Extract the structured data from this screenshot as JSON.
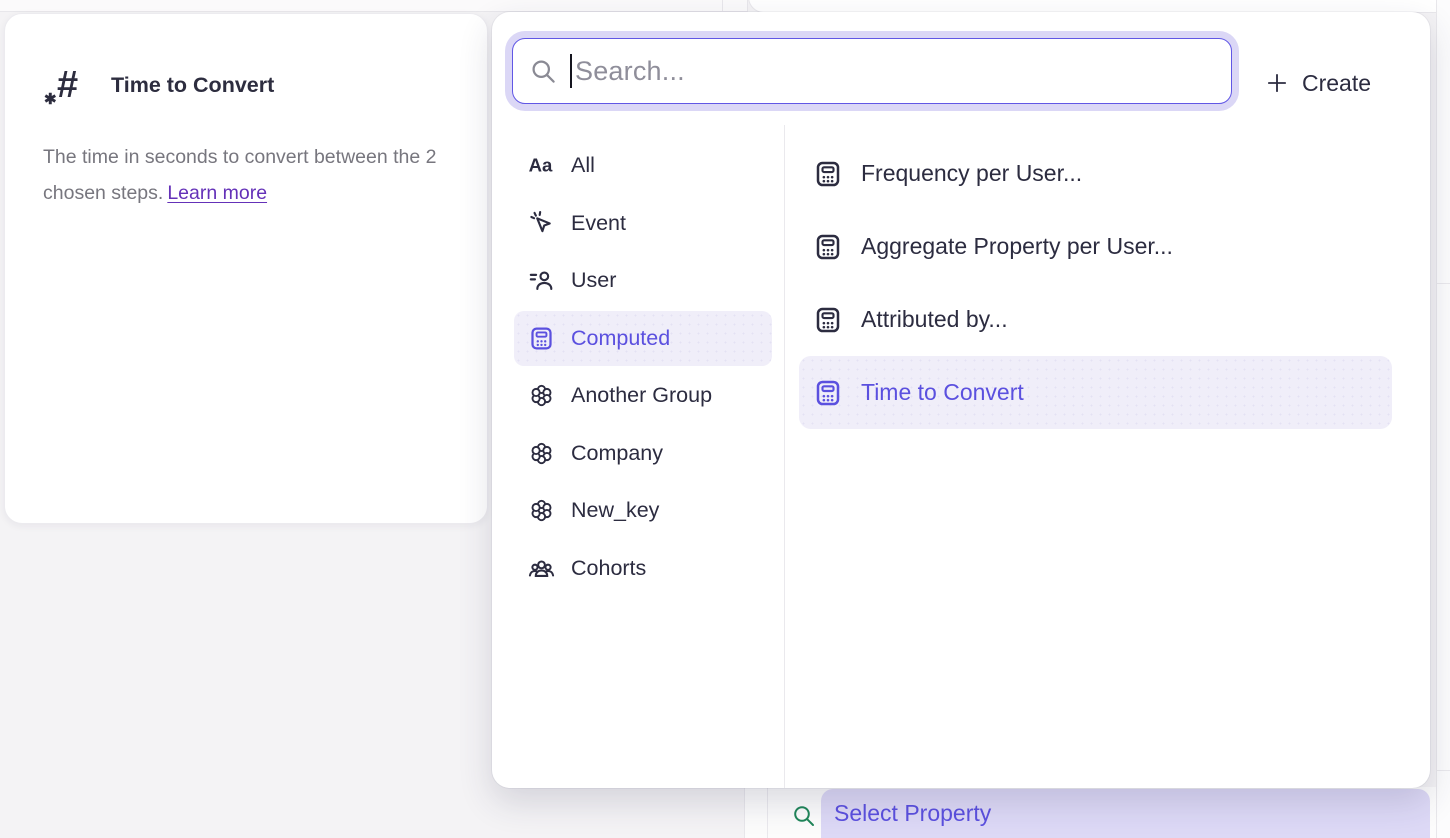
{
  "tooltip": {
    "icon": "number-hash-icon",
    "title": "Time to Convert",
    "description": "The time in seconds to convert between the 2 chosen steps.",
    "link_label": "Learn more"
  },
  "picker": {
    "search_icon": "search-icon",
    "search_placeholder": "Search...",
    "create_icon": "plus-icon",
    "create_label": "Create",
    "categories": [
      {
        "label": "All",
        "icon": "text-aa-icon",
        "selected": false
      },
      {
        "label": "Event",
        "icon": "event-cursor-icon",
        "selected": false
      },
      {
        "label": "User",
        "icon": "user-icon",
        "selected": false
      },
      {
        "label": "Computed",
        "icon": "computed-icon",
        "selected": true
      },
      {
        "label": "Another Group",
        "icon": "group-icon",
        "selected": false
      },
      {
        "label": "Company",
        "icon": "group-icon",
        "selected": false
      },
      {
        "label": "New_key",
        "icon": "group-icon",
        "selected": false
      },
      {
        "label": "Cohorts",
        "icon": "cohorts-icon",
        "selected": false
      }
    ],
    "properties": [
      {
        "label": "Frequency per User...",
        "icon": "computed-icon",
        "selected": false
      },
      {
        "label": "Aggregate Property per User...",
        "icon": "computed-icon",
        "selected": false
      },
      {
        "label": "Attributed by...",
        "icon": "computed-icon",
        "selected": false
      },
      {
        "label": "Time to Convert",
        "icon": "computed-icon",
        "selected": true
      }
    ]
  },
  "background": {
    "select_property_icon": "search-icon",
    "select_property_label": "Select Property"
  },
  "colors": {
    "accent_purple": "#5B50DF",
    "selected_row_bg": "#F0EEF9",
    "search_border": "#6157E5",
    "search_ring": "#DBD7F6",
    "link_purple": "#6431B8",
    "green_search": "#1F8659",
    "text_dark": "#2C2C40",
    "text_gray": "#77767E",
    "select_property_bg": "#DDD9F6"
  }
}
